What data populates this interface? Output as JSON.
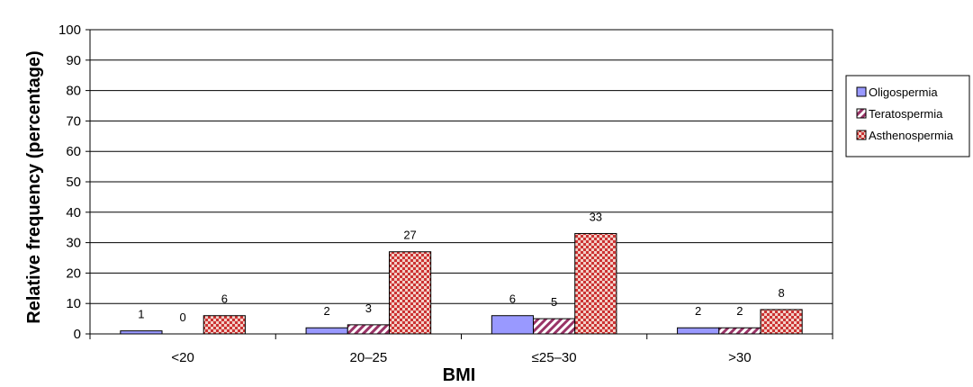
{
  "chart_data": {
    "type": "bar",
    "title": "",
    "xlabel": "BMI",
    "ylabel": "Relative frequency (percentage)",
    "ylim": [
      0,
      100
    ],
    "yticks": [
      0,
      10,
      20,
      30,
      40,
      50,
      60,
      70,
      80,
      90,
      100
    ],
    "categories": [
      "<20",
      "20–25",
      "≤25–30",
      ">30"
    ],
    "grid": true,
    "legend_position": "right",
    "series": [
      {
        "name": "Oligospermia",
        "values": [
          1,
          2,
          6,
          2
        ],
        "color": "#9999ff",
        "pattern": "solid"
      },
      {
        "name": "Teratospermia",
        "values": [
          0,
          3,
          5,
          2
        ],
        "color": "#993366",
        "pattern": "diagonal-stripes"
      },
      {
        "name": "Asthenospermia",
        "values": [
          6,
          27,
          33,
          8
        ],
        "color": "#cc3333",
        "pattern": "checker"
      }
    ]
  }
}
